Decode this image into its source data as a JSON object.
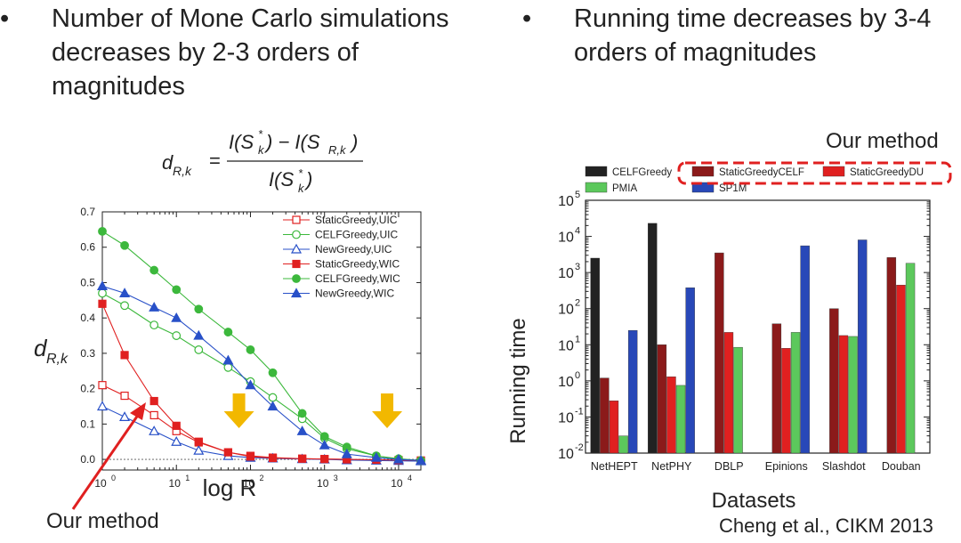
{
  "slide": {
    "bullet_symbol": "•",
    "left_bullet_lines": [
      "Number of Mone Carlo simulations",
      "decreases by 2-3 orders of",
      "magnitudes"
    ],
    "right_bullet_lines": [
      "Running time decreases by 3-4",
      "orders of magnitudes"
    ],
    "left_annotation": "Our method",
    "right_annotation": "Our method",
    "citation": "Cheng et al., CIKM 2013",
    "colors": {
      "red_marker": "#e02020",
      "arrow_yellow": "#f2b800",
      "dashed_box": "#e02020"
    }
  },
  "formula": {
    "lhs_base": "d",
    "lhs_sub": "R,k",
    "num_a": "I(S",
    "num_a_sub": "k",
    "num_a_sup": "*",
    "num_mid": ") − I(S",
    "num_b_sub": "R,k",
    "num_end": ")",
    "den_a": "I(S",
    "den_sub": "k",
    "den_sup": "*",
    "den_end": ")"
  },
  "chart_data": [
    {
      "type": "line",
      "xscale": "log",
      "xlabel": "log R",
      "ylabel": "d",
      "ylabel_sub": "R,k",
      "xlim": [
        1,
        20000
      ],
      "ylim": [
        -0.03,
        0.7
      ],
      "yticks": [
        0.0,
        0.1,
        0.2,
        0.3,
        0.4,
        0.5,
        0.6,
        0.7
      ],
      "ytick_labels": [
        "0.0",
        "0.1",
        "0.2",
        "0.3",
        "0.4",
        "0.5",
        "0.6",
        "0.7"
      ],
      "xtick_labels": [
        {
          "base": "10",
          "exp": "0",
          "v": 1
        },
        {
          "base": "10",
          "exp": "1",
          "v": 10
        },
        {
          "base": "10",
          "exp": "2",
          "v": 100
        },
        {
          "base": "10",
          "exp": "3",
          "v": 1000
        },
        {
          "base": "10",
          "exp": "4",
          "v": 10000
        }
      ],
      "legend_position": "top-right",
      "annotation_arrows_at_x": [
        70,
        7000
      ],
      "series": [
        {
          "name": "StaticGreedy,UIC",
          "color": "#e02020",
          "marker": "square",
          "filled": false,
          "x": [
            1,
            2,
            5,
            10,
            20,
            50,
            100,
            200,
            500,
            1000,
            2000,
            5000,
            10000,
            20000
          ],
          "y": [
            0.21,
            0.18,
            0.125,
            0.08,
            0.048,
            0.02,
            0.01,
            0.005,
            0.002,
            0.001,
            0.0,
            -0.002,
            -0.003,
            -0.004
          ]
        },
        {
          "name": "CELFGreedy,UIC",
          "color": "#3cb83c",
          "marker": "circle",
          "filled": false,
          "x": [
            1,
            2,
            5,
            10,
            20,
            50,
            100,
            200,
            500,
            1000,
            2000,
            5000,
            10000,
            20000
          ],
          "y": [
            0.47,
            0.435,
            0.38,
            0.35,
            0.31,
            0.26,
            0.22,
            0.175,
            0.115,
            0.06,
            0.03,
            0.01,
            0.0,
            -0.004
          ]
        },
        {
          "name": "NewGreedy,UIC",
          "color": "#2850c8",
          "marker": "triangle",
          "filled": false,
          "x": [
            1,
            2,
            5,
            10,
            20,
            50,
            100,
            200,
            500,
            1000,
            2000,
            5000,
            10000,
            20000
          ],
          "y": [
            0.15,
            0.12,
            0.08,
            0.05,
            0.025,
            0.01,
            0.005,
            0.003,
            0.001,
            0.0,
            -0.002,
            -0.003,
            -0.004,
            -0.005
          ]
        },
        {
          "name": "StaticGreedy,WIC",
          "color": "#e02020",
          "marker": "square",
          "filled": true,
          "x": [
            1,
            2,
            5,
            10,
            20,
            50,
            100,
            200,
            500,
            1000,
            2000,
            5000,
            10000,
            20000
          ],
          "y": [
            0.44,
            0.295,
            0.165,
            0.095,
            0.05,
            0.02,
            0.008,
            0.004,
            0.002,
            0.001,
            0.0,
            -0.001,
            -0.002,
            -0.003
          ]
        },
        {
          "name": "CELFGreedy,WIC",
          "color": "#3cb83c",
          "marker": "circle",
          "filled": true,
          "x": [
            1,
            2,
            5,
            10,
            20,
            50,
            100,
            200,
            500,
            1000,
            2000,
            5000,
            10000,
            20000
          ],
          "y": [
            0.645,
            0.605,
            0.535,
            0.48,
            0.425,
            0.36,
            0.31,
            0.245,
            0.13,
            0.065,
            0.035,
            0.01,
            0.002,
            -0.003
          ]
        },
        {
          "name": "NewGreedy,WIC",
          "color": "#2850c8",
          "marker": "triangle",
          "filled": true,
          "x": [
            1,
            2,
            5,
            10,
            20,
            50,
            100,
            200,
            500,
            1000,
            2000,
            5000,
            10000,
            20000
          ],
          "y": [
            0.49,
            0.47,
            0.43,
            0.4,
            0.35,
            0.28,
            0.21,
            0.15,
            0.08,
            0.04,
            0.015,
            0.005,
            0.0,
            -0.003
          ]
        }
      ]
    },
    {
      "type": "bar",
      "yscale": "log",
      "xlabel": "Datasets",
      "ylabel": "Running time",
      "ylim": [
        0.01,
        100000
      ],
      "ytick_labels": [
        {
          "base": "10",
          "exp": "-2"
        },
        {
          "base": "10",
          "exp": "-1"
        },
        {
          "base": "10",
          "exp": "0"
        },
        {
          "base": "10",
          "exp": "1"
        },
        {
          "base": "10",
          "exp": "2"
        },
        {
          "base": "10",
          "exp": "3"
        },
        {
          "base": "10",
          "exp": "4"
        },
        {
          "base": "10",
          "exp": "5"
        }
      ],
      "categories": [
        "NetHEPT",
        "NetPHY",
        "DBLP",
        "Epinions",
        "Slashdot",
        "Douban"
      ],
      "legend_position": "top",
      "series": [
        {
          "name": "CELFGreedy",
          "color": "#222222",
          "values": [
            2500,
            23000,
            null,
            null,
            null,
            null
          ]
        },
        {
          "name": "StaticGreedyCELF",
          "color": "#8b1a1a",
          "values": [
            1.2,
            10,
            3500,
            38,
            100,
            2600
          ]
        },
        {
          "name": "StaticGreedyDU",
          "color": "#e02020",
          "values": [
            0.28,
            1.3,
            22,
            8,
            18,
            450
          ]
        },
        {
          "name": "PMIA",
          "color": "#5cc85c",
          "values": [
            0.03,
            0.75,
            8.5,
            22,
            17,
            1800
          ]
        },
        {
          "name": "SP1M",
          "color": "#2848b8",
          "values": [
            25,
            380,
            null,
            5500,
            8000,
            null
          ]
        }
      ]
    }
  ]
}
